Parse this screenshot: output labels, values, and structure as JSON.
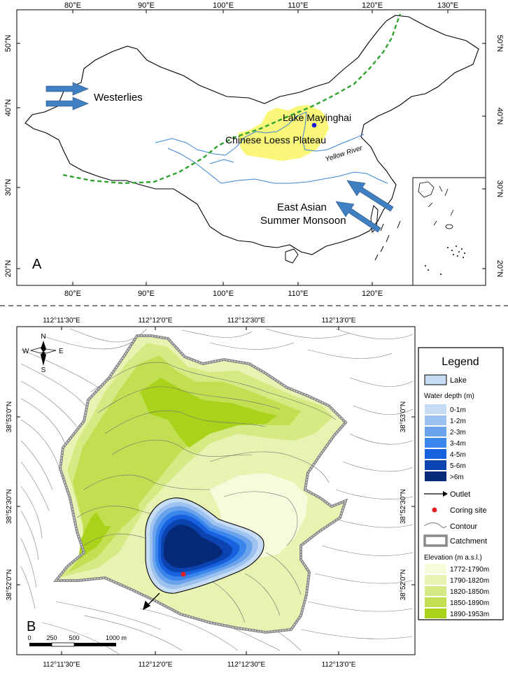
{
  "panel_a": {
    "label": "A",
    "lon_ticks_top": [
      "80°E",
      "90°E",
      "100°E",
      "110°E",
      "120°E",
      "130°E"
    ],
    "lon_ticks_bottom": [
      "80°E",
      "90°E",
      "100°E",
      "110°E",
      "120°E"
    ],
    "lat_ticks_left": [
      "50°N",
      "40°N",
      "30°N",
      "20°N"
    ],
    "lat_ticks_right": [
      "50°N",
      "40°N",
      "30°N",
      "20°N"
    ],
    "labels": {
      "westerlies": "Westerlies",
      "lake": "Lake Mayinghai",
      "loess": "Chinese Loess Plateau",
      "river": "Yellow River",
      "monsoon_line1": "East Asian",
      "monsoon_line2": "Summer Monsoon"
    },
    "colors": {
      "loess_fill": "#faf67a",
      "boundary_line": "#2fa32f",
      "river": "#3a85d6",
      "arrow": "#3f7fc2",
      "lake_dot": "#1a1ad8"
    }
  },
  "panel_b": {
    "label": "B",
    "lon_ticks_top": [
      "112°11'30\"E",
      "112°12'0\"E",
      "112°12'30\"E",
      "112°13'0\"E"
    ],
    "lon_ticks_bottom": [
      "112°11'30\"E",
      "112°12'0\"E",
      "112°12'30\"E",
      "112°13'0\"E"
    ],
    "lat_ticks_left": [
      "38°53'0\"N",
      "38°52'30\"N",
      "38°52'0\"N"
    ],
    "lat_ticks_right": [
      "38°53'0\"N",
      "38°52'30\"N",
      "38°52'0\"N"
    ],
    "compass": {
      "n": "N",
      "s": "S",
      "e": "E",
      "w": "W"
    },
    "scale_bar": [
      "0",
      "250",
      "500",
      "1000 m"
    ]
  },
  "legend": {
    "title": "Legend",
    "lake": "Lake",
    "water_depth_title": "Water depth (m)",
    "water_depth": [
      {
        "label": "0-1m",
        "color": "#c6dcf4"
      },
      {
        "label": "1-2m",
        "color": "#9dc2ef"
      },
      {
        "label": "2-3m",
        "color": "#6aa3ec"
      },
      {
        "label": "3-4m",
        "color": "#3b86ec"
      },
      {
        "label": "4-5m",
        "color": "#1862e0"
      },
      {
        "label": "5-6m",
        "color": "#0b43b0"
      },
      {
        "label": ">6m",
        "color": "#062a78"
      }
    ],
    "outlet": "Outlet",
    "coring_site": "Coring site",
    "contour": "Contour",
    "catchment": "Catchment",
    "elevation_title": "Elevation (m a.s.l.)",
    "elevation": [
      {
        "label": "1772-1790m",
        "color": "#f6fbdc"
      },
      {
        "label": "1790-1820m",
        "color": "#e8f3b2"
      },
      {
        "label": "1820-1850m",
        "color": "#d6ea84"
      },
      {
        "label": "1850-1890m",
        "color": "#c2df52"
      },
      {
        "label": "1890-1953m",
        "color": "#a9d31a"
      }
    ]
  }
}
